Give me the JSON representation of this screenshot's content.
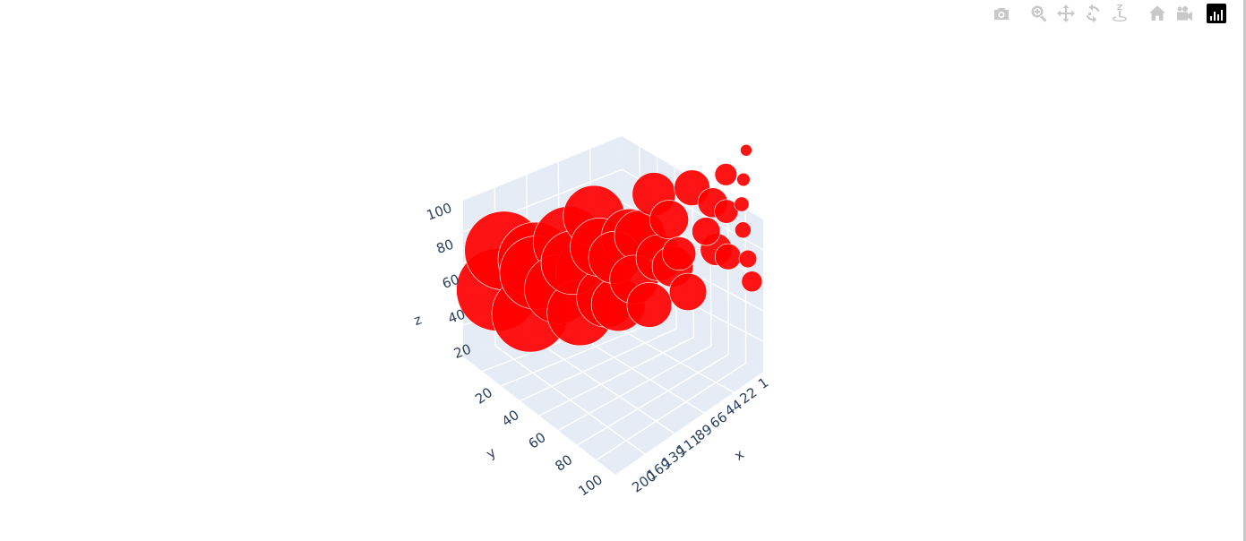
{
  "modebar": {
    "buttons": [
      {
        "icon": "camera-icon",
        "title": "Download plot as a png"
      },
      {
        "icon": "zoom-icon",
        "title": "Zoom"
      },
      {
        "icon": "pan-icon",
        "title": "Pan"
      },
      {
        "icon": "orbit-rotation-icon",
        "title": "Orbital rotation"
      },
      {
        "icon": "turntable-rotation-icon",
        "title": "Turntable rotation"
      },
      {
        "icon": "home-icon",
        "title": "Reset camera to default"
      },
      {
        "icon": "camera-view-icon",
        "title": "Reset camera to last save"
      },
      {
        "icon": "plotly-logo-icon",
        "title": "Produced with Plotly"
      }
    ]
  },
  "chart_data": {
    "type": "scatter",
    "mode": "3d",
    "marker_color": "#ff0000",
    "marker_line_color": "#ffffff",
    "scene_background": "#e5ecf6",
    "grid_color": "#ffffff",
    "axes": {
      "x": {
        "title": "x",
        "tick_labels": [
          "1",
          "22",
          "44",
          "66",
          "89",
          "111",
          "139",
          "169",
          "200"
        ],
        "range": [
          1,
          200
        ]
      },
      "y": {
        "title": "y",
        "tick_labels": [
          "20",
          "40",
          "60",
          "80",
          "100"
        ],
        "range": [
          0,
          100
        ]
      },
      "z": {
        "title": "z",
        "tick_labels": [
          "20",
          "40",
          "60",
          "80",
          "100"
        ],
        "range": [
          0,
          100
        ]
      }
    },
    "series": [
      {
        "marker_size_range": [
          2,
          100
        ],
        "note_points": "dense cloud of overlapping bubbles; sizes grow from small bubbles near low x to very large bubbles near high x",
        "points": [
          {
            "x": 3,
            "y": 5,
            "z": 90,
            "size": 6
          },
          {
            "x": 5,
            "y": 10,
            "z": 70,
            "size": 8
          },
          {
            "x": 8,
            "y": 20,
            "z": 55,
            "size": 10
          },
          {
            "x": 10,
            "y": 35,
            "z": 40,
            "size": 12
          },
          {
            "x": 12,
            "y": 60,
            "z": 25,
            "size": 14
          },
          {
            "x": 15,
            "y": 85,
            "z": 15,
            "size": 18
          },
          {
            "x": 20,
            "y": 15,
            "z": 80,
            "size": 20
          },
          {
            "x": 25,
            "y": 40,
            "z": 60,
            "size": 22
          },
          {
            "x": 30,
            "y": 70,
            "z": 35,
            "size": 25
          },
          {
            "x": 35,
            "y": 25,
            "z": 45,
            "size": 28
          },
          {
            "x": 40,
            "y": 55,
            "z": 75,
            "size": 30
          },
          {
            "x": 45,
            "y": 90,
            "z": 50,
            "size": 33
          },
          {
            "x": 50,
            "y": 10,
            "z": 30,
            "size": 35
          },
          {
            "x": 55,
            "y": 50,
            "z": 90,
            "size": 38
          },
          {
            "x": 60,
            "y": 75,
            "z": 20,
            "size": 40
          },
          {
            "x": 65,
            "y": 30,
            "z": 65,
            "size": 42
          },
          {
            "x": 70,
            "y": 65,
            "z": 40,
            "size": 45
          },
          {
            "x": 75,
            "y": 20,
            "z": 85,
            "size": 48
          },
          {
            "x": 80,
            "y": 45,
            "z": 10,
            "size": 50
          },
          {
            "x": 85,
            "y": 80,
            "z": 55,
            "size": 52
          },
          {
            "x": 90,
            "y": 35,
            "z": 30,
            "size": 55
          },
          {
            "x": 95,
            "y": 60,
            "z": 70,
            "size": 58
          },
          {
            "x": 100,
            "y": 15,
            "z": 45,
            "size": 60
          },
          {
            "x": 105,
            "y": 50,
            "z": 20,
            "size": 62
          },
          {
            "x": 110,
            "y": 85,
            "z": 80,
            "size": 65
          },
          {
            "x": 115,
            "y": 25,
            "z": 60,
            "size": 68
          },
          {
            "x": 120,
            "y": 70,
            "z": 35,
            "size": 70
          },
          {
            "x": 125,
            "y": 40,
            "z": 90,
            "size": 72
          },
          {
            "x": 130,
            "y": 10,
            "z": 50,
            "size": 75
          },
          {
            "x": 135,
            "y": 55,
            "z": 25,
            "size": 78
          },
          {
            "x": 140,
            "y": 90,
            "z": 65,
            "size": 80
          },
          {
            "x": 145,
            "y": 30,
            "z": 40,
            "size": 82
          },
          {
            "x": 150,
            "y": 65,
            "z": 85,
            "size": 85
          },
          {
            "x": 160,
            "y": 20,
            "z": 55,
            "size": 88
          },
          {
            "x": 170,
            "y": 50,
            "z": 75,
            "size": 90
          },
          {
            "x": 180,
            "y": 80,
            "z": 45,
            "size": 92
          },
          {
            "x": 190,
            "y": 35,
            "z": 85,
            "size": 95
          },
          {
            "x": 200,
            "y": 60,
            "z": 65,
            "size": 100
          }
        ]
      }
    ]
  }
}
